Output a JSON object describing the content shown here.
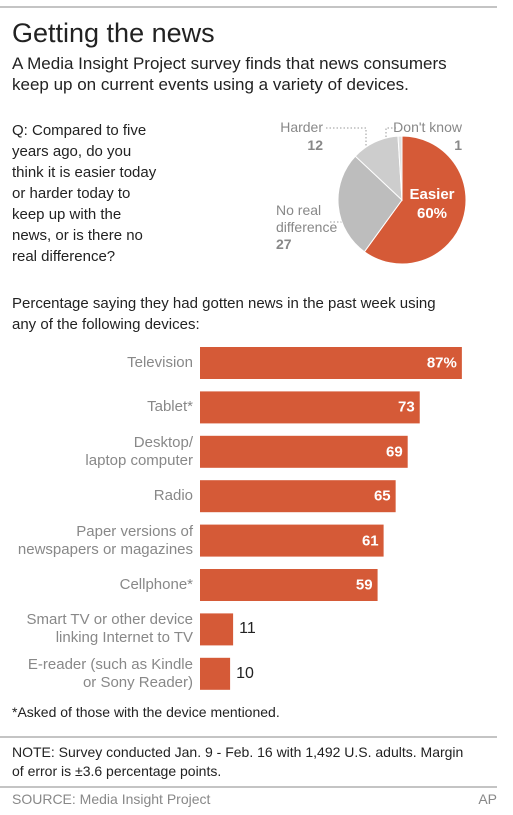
{
  "header": {
    "title": "Getting the news",
    "subtitle": "A Media Insight Project survey finds that news consumers\nkeep up on current events using a variety of devices."
  },
  "chart_data": [
    {
      "type": "pie",
      "question": "Q: Compared to five\nyears ago, do you\nthink it is easier today\nor harder today to\nkeep up with the\nnews, or is there no\nreal difference?",
      "categories": [
        "Easier",
        "No real\ndifference",
        "Harder",
        "Don't know"
      ],
      "values": [
        60,
        27,
        12,
        1
      ],
      "value_labels": [
        "60%",
        "27",
        "12",
        "1"
      ],
      "colors": [
        "#d55a37",
        "#bdbdbd",
        "#cdcdcd",
        "#e2e2e2"
      ]
    },
    {
      "type": "bar",
      "title": "Percentage saying they had gotten news in the past week using\nany of the following devices:",
      "categories": [
        "Television",
        "Tablet*",
        "Desktop/\nlaptop computer",
        "Radio",
        "Paper versions of\nnewspapers or magazines",
        "Cellphone*",
        "Smart TV or other device\nlinking Internet to TV",
        "E-reader (such as Kindle\nor Sony Reader)"
      ],
      "values": [
        87,
        73,
        69,
        65,
        61,
        59,
        11,
        10
      ],
      "value_labels": [
        "87%",
        "73",
        "69",
        "65",
        "61",
        "59",
        "11",
        "10"
      ],
      "color": "#d55a37",
      "footnote": "*Asked of those with the device mentioned."
    }
  ],
  "footer": {
    "note": "NOTE: Survey conducted Jan. 9 - Feb. 16 with 1,492 U.S. adults. Margin\nof error is ±3.6 percentage points.",
    "source": "SOURCE: Media Insight Project",
    "credit": "AP"
  }
}
